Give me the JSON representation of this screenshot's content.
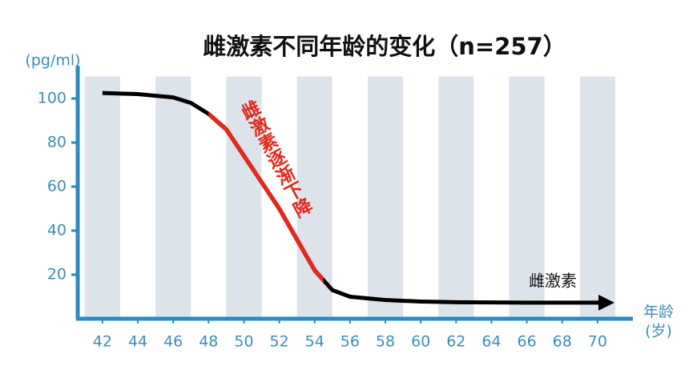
{
  "chart_data": {
    "type": "line",
    "title": "雌激素不同年龄的变化（n=257）",
    "y_label": "(pg/ml)",
    "x_label": "年龄",
    "x_unit": "(岁)",
    "annotation": "雌激素逐渐下降",
    "annotation_color": "#e02a1c",
    "axis_color": "#2e8bbd",
    "band_color": "#dde3ea",
    "xlim": [
      40.6,
      72
    ],
    "ylim": [
      0,
      110
    ],
    "xticks": [
      42,
      44,
      46,
      48,
      50,
      52,
      54,
      56,
      58,
      60,
      62,
      64,
      66,
      68,
      70
    ],
    "yticks": [
      20,
      40,
      60,
      80,
      100
    ],
    "highlight_x": [
      48,
      54.5
    ],
    "series": [
      {
        "name": "雌激素",
        "color": "#000000",
        "x": [
          42,
          44,
          46,
          47,
          48,
          49,
          50,
          51,
          52,
          53,
          54,
          55,
          56,
          58,
          60,
          62,
          66,
          70.5
        ],
        "values": [
          102.5,
          102,
          100.5,
          98,
          93,
          86,
          74,
          62,
          50,
          36,
          22,
          13,
          10,
          8.5,
          7.8,
          7.5,
          7.3,
          7.3
        ]
      }
    ]
  }
}
